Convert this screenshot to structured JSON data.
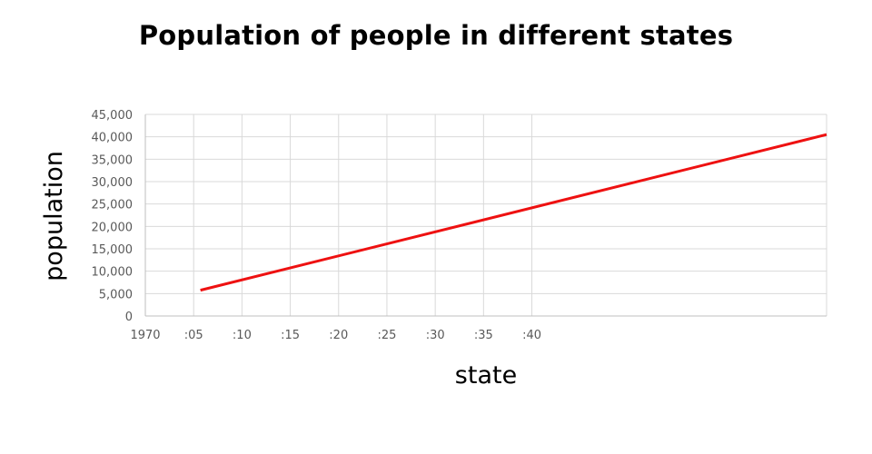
{
  "chart_data": {
    "type": "line",
    "title": "Population of people in different states",
    "xlabel": "state",
    "ylabel": "population",
    "x_tick_labels": [
      "1970",
      ":05",
      ":10",
      ":15",
      ":20",
      ":25",
      ":30",
      ":35",
      ":40"
    ],
    "y_tick_labels": [
      "0",
      "5,000",
      "10,000",
      "15,000",
      "20,000",
      "25,000",
      "30,000",
      "35,000",
      "40,000",
      "45,000"
    ],
    "xlim": [
      1970,
      2040.5
    ],
    "ylim": [
      0,
      45000
    ],
    "grid": true,
    "legend": "none",
    "series": [
      {
        "color": "#ee1111",
        "x": [
          1975.7,
          2040.5
        ],
        "y": [
          5750,
          40500
        ]
      }
    ]
  }
}
